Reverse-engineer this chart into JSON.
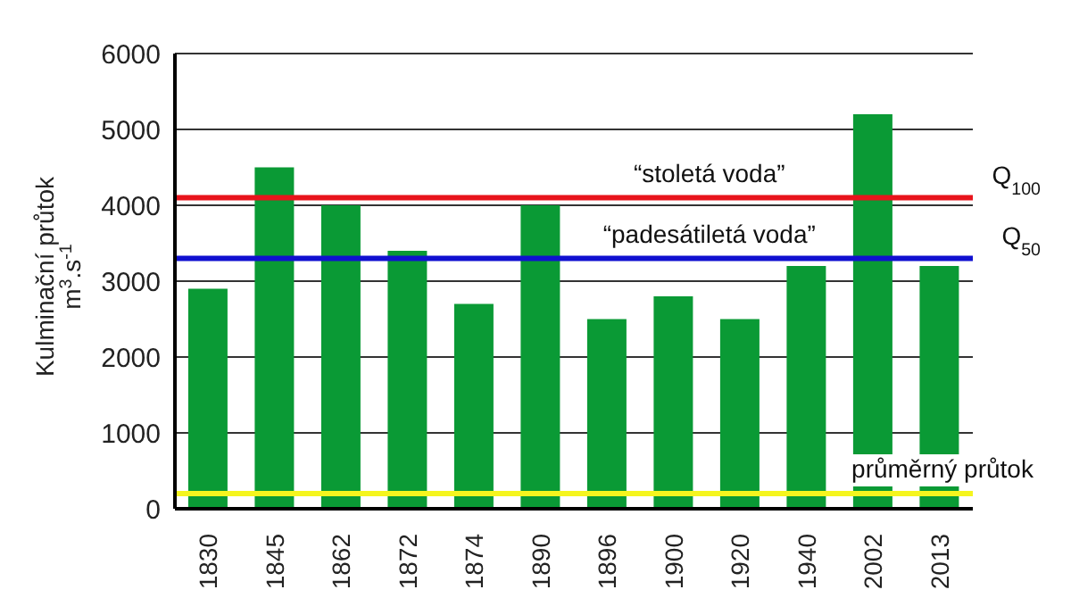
{
  "chart_data": {
    "type": "bar",
    "ylabel": "Kulminační průtok\nm$^{3}$.s$^{-1}$",
    "categories": [
      "1830",
      "1845",
      "1862",
      "1872",
      "1874",
      "1890",
      "1896",
      "1900",
      "1920",
      "1940",
      "2002",
      "2013"
    ],
    "values": [
      2900,
      4500,
      4000,
      3400,
      2700,
      4000,
      2500,
      2800,
      2500,
      3200,
      5200,
      3200
    ],
    "color": "#0a9a35",
    "ylim": [
      0,
      6000
    ],
    "yticks": [
      0,
      1000,
      2000,
      3000,
      4000,
      5000,
      6000
    ],
    "grid": "y",
    "ref_lines": [
      {
        "axis": "y",
        "value": 4100,
        "label": "Q$_{100}$",
        "color": "#e8141c"
      },
      {
        "axis": "y",
        "value": 3300,
        "label": "Q$_{50}$",
        "color": "#1010d0"
      },
      {
        "axis": "y",
        "value": 200,
        "label": "průměrný průtok",
        "color": "#f5f51e"
      }
    ],
    "annotations": [
      {
        "text": "“stoletá voda”",
        "x": "1900",
        "y": 4100
      },
      {
        "text": "“padesátiletá voda”",
        "x": "1900",
        "y": 3300
      }
    ]
  }
}
